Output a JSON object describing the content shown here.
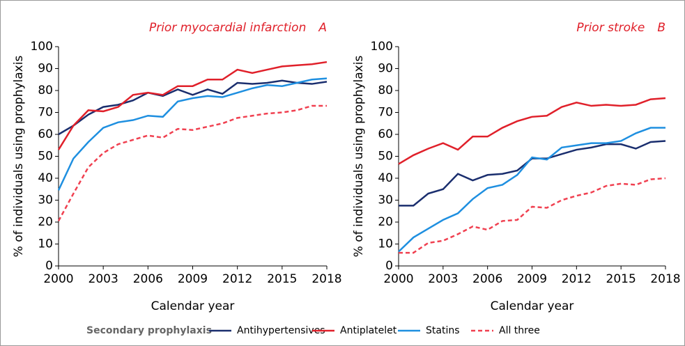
{
  "legend_title": "Secondary prophylaxis",
  "chart_data": [
    {
      "type": "line",
      "title": "Prior myocardial infarction",
      "panel": "A",
      "x_label": "Calendar year",
      "y_label": "% of individuals using prophylaxis",
      "x": [
        2000,
        2001,
        2002,
        2003,
        2004,
        2005,
        2006,
        2007,
        2008,
        2009,
        2010,
        2011,
        2012,
        2013,
        2014,
        2015,
        2016,
        2017,
        2018
      ],
      "xlim": [
        2000,
        2018
      ],
      "xticks": [
        2000,
        2003,
        2006,
        2009,
        2012,
        2015,
        2018
      ],
      "ylim": [
        0,
        100
      ],
      "yticks": [
        0,
        10,
        20,
        30,
        40,
        50,
        60,
        70,
        80,
        90,
        100
      ],
      "series": [
        {
          "name": "Antihypertensives",
          "color": "#1a2e6e",
          "dashed": false,
          "values": [
            60,
            64,
            69,
            72.5,
            73.5,
            75.5,
            79,
            77.5,
            80.5,
            78,
            80.5,
            78.5,
            83.5,
            83,
            83.5,
            84.5,
            83.5,
            83,
            84
          ]
        },
        {
          "name": "Antiplatelet",
          "color": "#e0202a",
          "dashed": false,
          "values": [
            53,
            64,
            71,
            70.5,
            72.5,
            78,
            79,
            78,
            82,
            82,
            85,
            85,
            89.5,
            88,
            89.5,
            91,
            91.5,
            92,
            93
          ]
        },
        {
          "name": "Statins",
          "color": "#1e8fe0",
          "dashed": false,
          "values": [
            34.5,
            49,
            56.5,
            63,
            65.5,
            66.5,
            68.5,
            68,
            75,
            76.5,
            77.5,
            77,
            79,
            81,
            82.5,
            82,
            83.5,
            85,
            85.5
          ]
        },
        {
          "name": "All three",
          "color": "#f04050",
          "dashed": true,
          "values": [
            20.5,
            33,
            45,
            51.5,
            55.5,
            57.5,
            59.5,
            58.5,
            62.5,
            62,
            63.5,
            65,
            67.5,
            68.5,
            69.5,
            70,
            71,
            73,
            73
          ]
        }
      ]
    },
    {
      "type": "line",
      "title": "Prior stroke",
      "panel": "B",
      "x_label": "Calendar year",
      "y_label": "% of individuals using prophylaxis",
      "x": [
        2000,
        2001,
        2002,
        2003,
        2004,
        2005,
        2006,
        2007,
        2008,
        2009,
        2010,
        2011,
        2012,
        2013,
        2014,
        2015,
        2016,
        2017,
        2018
      ],
      "xlim": [
        2000,
        2018
      ],
      "xticks": [
        2000,
        2003,
        2006,
        2009,
        2012,
        2015,
        2018
      ],
      "ylim": [
        0,
        100
      ],
      "yticks": [
        0,
        10,
        20,
        30,
        40,
        50,
        60,
        70,
        80,
        90,
        100
      ],
      "series": [
        {
          "name": "Antihypertensives",
          "color": "#1a2e6e",
          "dashed": false,
          "values": [
            27.5,
            27.5,
            33,
            35,
            42,
            39,
            41.5,
            42,
            43.5,
            49,
            49,
            51,
            53,
            54,
            55.5,
            55.5,
            53.5,
            56.5,
            57
          ]
        },
        {
          "name": "Antiplatelet",
          "color": "#e0202a",
          "dashed": false,
          "values": [
            46.5,
            50.5,
            53.5,
            56,
            53,
            59,
            59,
            63,
            66,
            68,
            68.5,
            72.5,
            74.5,
            73,
            73.5,
            73,
            73.5,
            76,
            76.5
          ]
        },
        {
          "name": "Statins",
          "color": "#1e8fe0",
          "dashed": false,
          "values": [
            6.5,
            13,
            17,
            21,
            24,
            30.5,
            35.5,
            37,
            41.5,
            49.5,
            48.5,
            54,
            55,
            56,
            56,
            57,
            60.5,
            63,
            63
          ]
        },
        {
          "name": "All three",
          "color": "#f04050",
          "dashed": true,
          "values": [
            6,
            6,
            10.5,
            11.5,
            14.5,
            18,
            16.5,
            20.5,
            21,
            27,
            26.5,
            30,
            32,
            33.5,
            36.5,
            37.5,
            37,
            39.5,
            40
          ]
        }
      ]
    }
  ]
}
